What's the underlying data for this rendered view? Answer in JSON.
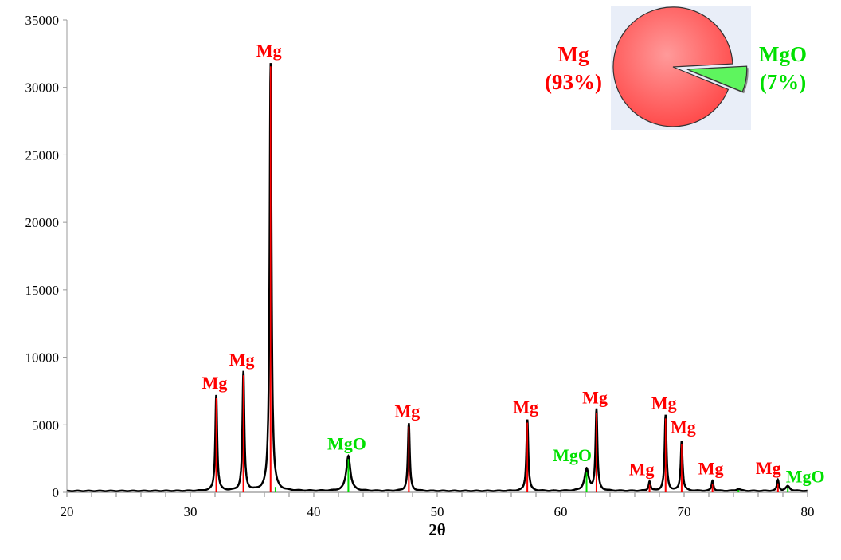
{
  "chart_data": [
    {
      "type": "line",
      "title": "",
      "xlabel": "2θ",
      "ylabel": "",
      "xlim": [
        20,
        80
      ],
      "ylim": [
        0,
        35000
      ],
      "x_ticks": [
        "20",
        "30",
        "40",
        "50",
        "60",
        "70",
        "80"
      ],
      "y_ticks": [
        "0",
        "5000",
        "10000",
        "15000",
        "20000",
        "25000",
        "30000",
        "35000"
      ],
      "grid": false,
      "line_color": "#000000",
      "background_intensity": 100,
      "peaks": [
        {
          "two_theta": 32.1,
          "intensity": 7200,
          "phase": "Mg",
          "label": "Mg"
        },
        {
          "two_theta": 34.3,
          "intensity": 8900,
          "phase": "Mg",
          "label": "Mg"
        },
        {
          "two_theta": 36.5,
          "intensity": 31800,
          "phase": "Mg",
          "label": "Mg"
        },
        {
          "two_theta": 36.9,
          "intensity": 0,
          "phase": "MgO",
          "label": ""
        },
        {
          "two_theta": 42.8,
          "intensity": 2700,
          "phase": "MgO",
          "label": "MgO"
        },
        {
          "two_theta": 47.7,
          "intensity": 5100,
          "phase": "Mg",
          "label": "Mg"
        },
        {
          "two_theta": 57.3,
          "intensity": 5400,
          "phase": "Mg",
          "label": "Mg"
        },
        {
          "two_theta": 62.1,
          "intensity": 1700,
          "phase": "MgO",
          "label": "MgO"
        },
        {
          "two_theta": 62.9,
          "intensity": 6100,
          "phase": "Mg",
          "label": "Mg"
        },
        {
          "two_theta": 67.2,
          "intensity": 800,
          "phase": "Mg",
          "label": "Mg"
        },
        {
          "two_theta": 68.5,
          "intensity": 5700,
          "phase": "Mg",
          "label": "Mg"
        },
        {
          "two_theta": 69.8,
          "intensity": 3800,
          "phase": "Mg",
          "label": "Mg"
        },
        {
          "two_theta": 72.3,
          "intensity": 850,
          "phase": "Mg",
          "label": "Mg"
        },
        {
          "two_theta": 74.4,
          "intensity": 250,
          "phase": "MgO",
          "label": ""
        },
        {
          "two_theta": 77.6,
          "intensity": 900,
          "phase": "Mg",
          "label": "Mg"
        },
        {
          "two_theta": 78.4,
          "intensity": 450,
          "phase": "MgO",
          "label": "MgO"
        }
      ],
      "phase_colors": {
        "Mg": "#ff0000",
        "MgO": "#00e000"
      }
    },
    {
      "type": "pie",
      "background": "#e9eef8",
      "slices": [
        {
          "name": "Mg",
          "value": 93,
          "label": "Mg",
          "percent_label": "(93%)",
          "color": "#ff4c4c",
          "text_color": "#ff0000"
        },
        {
          "name": "MgO",
          "value": 7,
          "label": "MgO",
          "percent_label": "(7%)",
          "color": "#5ef55e",
          "text_color": "#00e000",
          "exploded": true
        }
      ]
    }
  ]
}
